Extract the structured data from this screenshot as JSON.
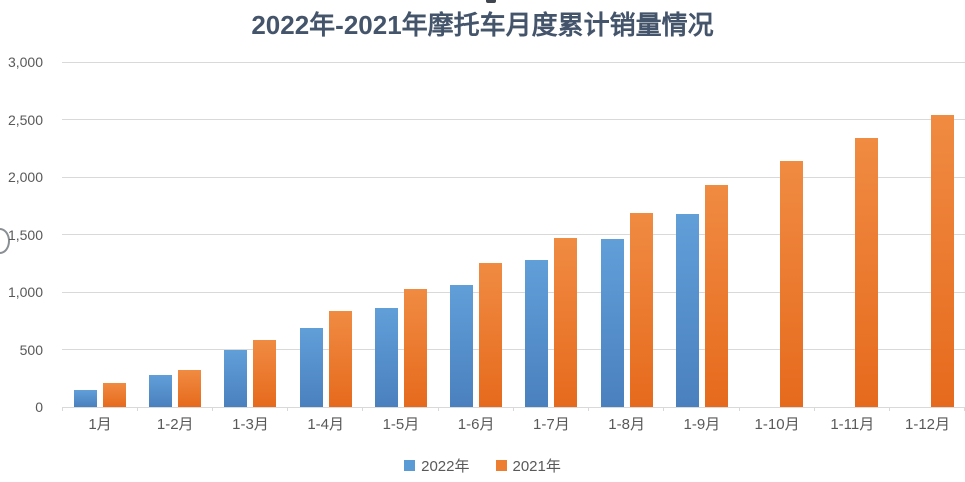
{
  "chart_data": {
    "type": "bar",
    "title": "2022年-2021年摩托车月度累计销量情况",
    "categories": [
      "1月",
      "1-2月",
      "1-3月",
      "1-4月",
      "1-5月",
      "1-6月",
      "1-7月",
      "1-8月",
      "1-9月",
      "1-10月",
      "1-11月",
      "1-12月"
    ],
    "series": [
      {
        "name": "2022年",
        "color": "#5B9BD5",
        "color_light": "#619FD9",
        "color_dark": "#4A80BE",
        "values": [
          145,
          275,
          495,
          685,
          860,
          1065,
          1280,
          1460,
          1675,
          null,
          null,
          null
        ]
      },
      {
        "name": "2021年",
        "color": "#ED7D31",
        "color_light": "#F08B42",
        "color_dark": "#E66A1D",
        "values": [
          205,
          320,
          585,
          835,
          1030,
          1250,
          1470,
          1690,
          1930,
          2140,
          2335,
          2535
        ]
      }
    ],
    "ylim": [
      0,
      3000
    ],
    "ytick_step": 500,
    "ytick_labels": [
      "0",
      "500",
      "1,000",
      "1,500",
      "2,000",
      "2,500",
      "3,000"
    ],
    "grid": true,
    "legend_position": "bottom",
    "title_color": "#44546A",
    "axis_text_color": "#595959",
    "gridline_color": "#D9D9D9"
  }
}
